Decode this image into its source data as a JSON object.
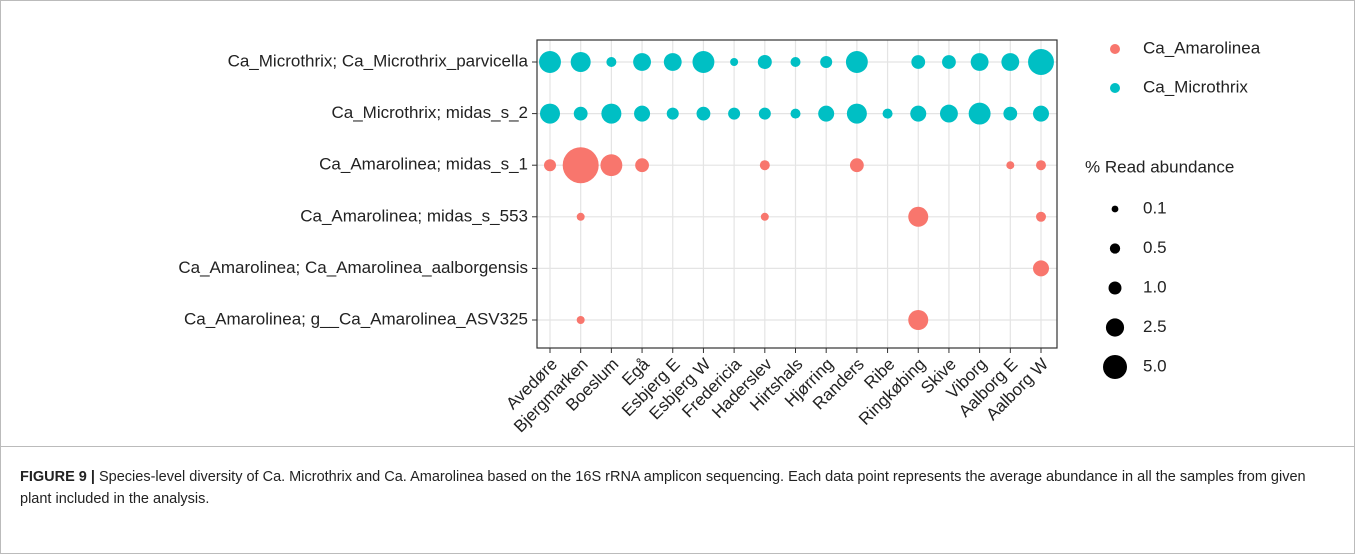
{
  "chart_data": {
    "type": "bubble",
    "categories": [
      "Avedøre",
      "Bjergmarken",
      "Boeslum",
      "Egå",
      "Esbjerg E",
      "Esbjerg W",
      "Fredericia",
      "Haderslev",
      "Hirtshals",
      "Hjørring",
      "Randers",
      "Ribe",
      "Ringkøbing",
      "Skive",
      "Viborg",
      "Aalborg E",
      "Aalborg W"
    ],
    "series": [
      {
        "name": "Ca_Amarolinea",
        "color": "#F8766D",
        "rows": [
          {
            "label": "Ca_Amarolinea; g__Ca_Amarolinea_ASV325",
            "values": [
              null,
              0.2,
              null,
              null,
              null,
              null,
              null,
              null,
              null,
              null,
              null,
              null,
              3.2,
              null,
              null,
              null,
              null
            ]
          },
          {
            "label": "Ca_Amarolinea; Ca_Amarolinea_aalborgensis",
            "values": [
              null,
              null,
              null,
              null,
              null,
              null,
              null,
              null,
              null,
              null,
              null,
              null,
              null,
              null,
              null,
              null,
              1.8
            ]
          },
          {
            "label": "Ca_Amarolinea; midas_s_553",
            "values": [
              null,
              0.2,
              null,
              null,
              null,
              null,
              null,
              0.2,
              null,
              null,
              null,
              null,
              3.2,
              null,
              null,
              null,
              0.45
            ]
          },
          {
            "label": "Ca_Amarolinea; midas_s_1",
            "values": [
              0.8,
              12.8,
              4.0,
              1.2,
              null,
              null,
              null,
              0.45,
              null,
              null,
              1.2,
              null,
              null,
              null,
              null,
              0.2,
              0.45
            ]
          }
        ]
      },
      {
        "name": "Ca_Microthrix",
        "color": "#00BFC4",
        "rows": [
          {
            "label": "Ca_Microthrix; midas_s_2",
            "values": [
              3.2,
              1.2,
              3.2,
              1.8,
              0.8,
              1.2,
              0.8,
              0.8,
              0.45,
              1.8,
              3.2,
              0.45,
              1.8,
              2.4,
              4.0,
              1.2,
              1.8
            ]
          },
          {
            "label": "Ca_Microthrix; Ca_Microthrix_parvicella",
            "values": [
              4.0,
              3.2,
              0.45,
              2.4,
              2.4,
              4.0,
              0.2,
              1.25,
              0.45,
              0.8,
              4.0,
              null,
              1.2,
              1.2,
              2.4,
              2.4,
              6.0
            ]
          }
        ]
      }
    ],
    "size_legend": {
      "title": "% Read abundance",
      "values": [
        0.1,
        0.5,
        {
          "value": 1.0,
          "label": "1.0"
        },
        2.5,
        {
          "value": 5.0,
          "label": "5.0"
        }
      ]
    },
    "grid": true
  },
  "caption": {
    "label": "FIGURE 9 |",
    "text": "Species-level diversity of Ca. Microthrix and Ca. Amarolinea based on the 16S rRNA amplicon sequencing. Each data point represents the average abundance in all the samples from given plant included in the analysis."
  }
}
